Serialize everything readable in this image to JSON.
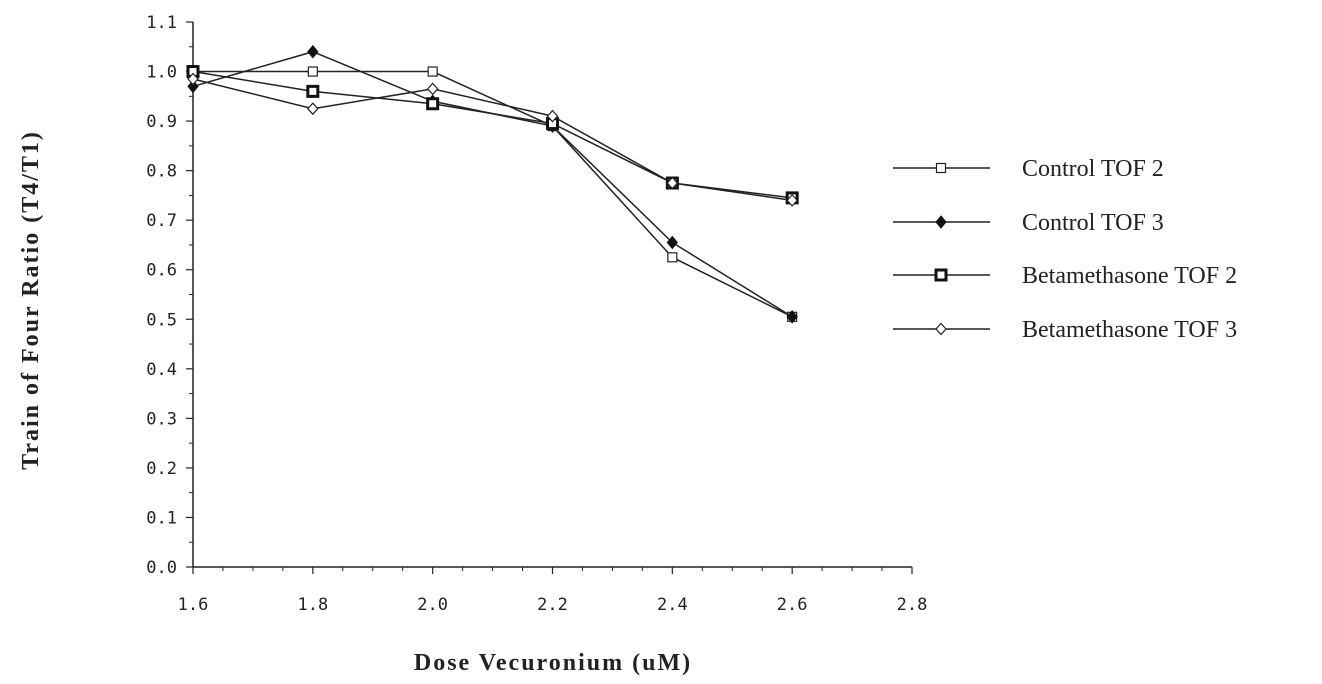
{
  "chart_data": {
    "type": "line",
    "title": "",
    "xlabel": "Dose Vecuronium (uM)",
    "ylabel": "Train of Four Ratio (T4/T1)",
    "xlim": [
      1.6,
      2.8
    ],
    "ylim": [
      0.0,
      1.1
    ],
    "x_ticks": [
      "1.6",
      "1.8",
      "2.0",
      "2.2",
      "2.4",
      "2.6",
      "2.8"
    ],
    "y_ticks": [
      "0.0",
      "0.1",
      "0.2",
      "0.3",
      "0.4",
      "0.5",
      "0.6",
      "0.7",
      "0.8",
      "0.9",
      "1.0",
      "1.1"
    ],
    "grid": false,
    "legend_position": "right",
    "x": [
      1.6,
      1.8,
      2.0,
      2.2,
      2.4,
      2.6
    ],
    "series": [
      {
        "name": "Control TOF 2",
        "marker": "open-square",
        "values": [
          1.0,
          1.0,
          1.0,
          0.89,
          0.625,
          0.505
        ]
      },
      {
        "name": "Control TOF 3",
        "marker": "filled-diamond",
        "values": [
          0.97,
          1.04,
          0.94,
          0.89,
          0.655,
          0.505
        ]
      },
      {
        "name": "Betamethasone TOF 2",
        "marker": "bold-square",
        "values": [
          1.0,
          0.96,
          0.935,
          0.895,
          0.775,
          0.745
        ]
      },
      {
        "name": "Betamethasone TOF 3",
        "marker": "open-diamond",
        "values": [
          0.985,
          0.925,
          0.965,
          0.91,
          0.775,
          0.74
        ]
      }
    ]
  }
}
